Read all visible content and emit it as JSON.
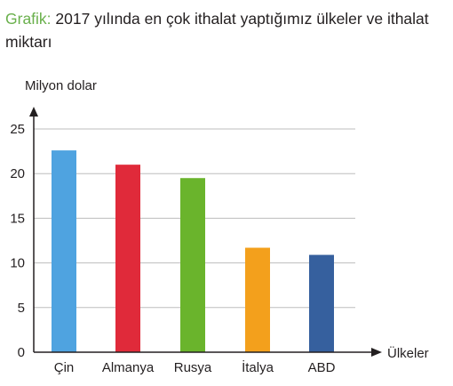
{
  "heading": {
    "label": "Grafik:",
    "text": " 2017 yılında en çok ithalat yaptığımız ülkeler ve ithalat miktarı"
  },
  "chart_data": {
    "type": "bar",
    "ylabel": "Milyon dolar",
    "xlabel": "Ülkeler",
    "categories": [
      "Çin",
      "Almanya",
      "Rusya",
      "İtalya",
      "ABD"
    ],
    "values": [
      22.6,
      21.0,
      19.5,
      11.7,
      10.9
    ],
    "colors": [
      "#4fa3e0",
      "#e02a3a",
      "#6ab42c",
      "#f3a01c",
      "#36609e"
    ],
    "yticks": [
      0,
      5,
      10,
      15,
      20,
      25
    ],
    "ylim": [
      0,
      25
    ],
    "grid": true
  }
}
